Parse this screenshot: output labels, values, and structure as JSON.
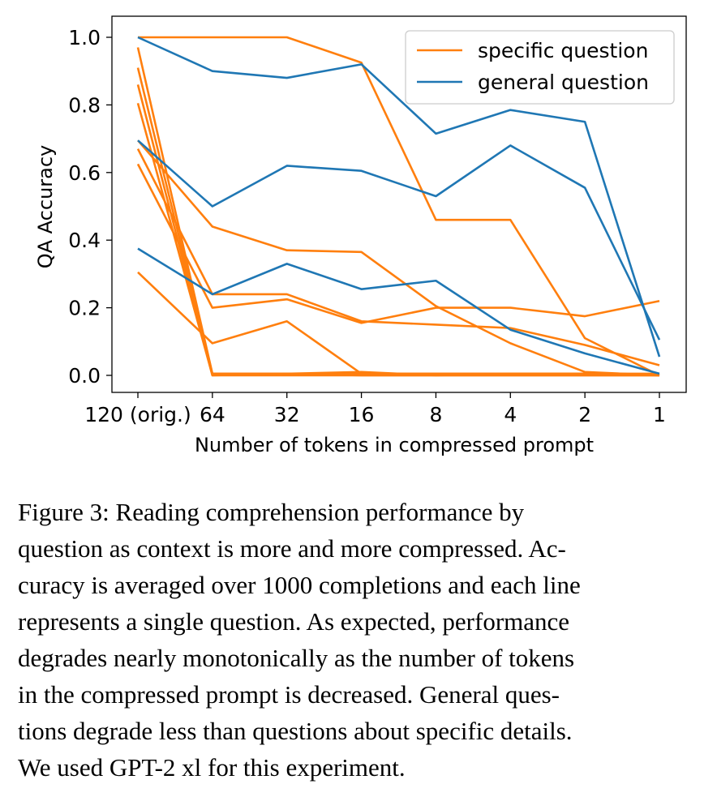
{
  "chart_data": {
    "type": "line",
    "title": "",
    "xlabel": "Number of tokens in compressed prompt",
    "ylabel": "QA Accuracy",
    "categories": [
      "120 (orig.)",
      "64",
      "32",
      "16",
      "8",
      "4",
      "2",
      "1"
    ],
    "ylim": [
      0,
      1
    ],
    "yticks": [
      "0.0",
      "0.2",
      "0.4",
      "0.6",
      "0.8",
      "1.0"
    ],
    "legend": {
      "placement": "top-right",
      "entries": [
        "specific question",
        "general question"
      ]
    },
    "colors": {
      "specific": "#ff7f0e",
      "general": "#1f77b4"
    },
    "series": [
      {
        "group": "specific",
        "values": [
          1.0,
          1.0,
          1.0,
          0.925,
          0.46,
          0.46,
          0.11,
          0.0
        ]
      },
      {
        "group": "specific",
        "values": [
          0.695,
          0.44,
          0.37,
          0.365,
          0.205,
          0.095,
          0.01,
          0.0
        ]
      },
      {
        "group": "specific",
        "values": [
          0.67,
          0.24,
          0.24,
          0.16,
          0.15,
          0.14,
          0.09,
          0.03
        ]
      },
      {
        "group": "specific",
        "values": [
          0.625,
          0.2,
          0.225,
          0.155,
          0.2,
          0.2,
          0.175,
          0.22
        ]
      },
      {
        "group": "specific",
        "values": [
          0.305,
          0.095,
          0.16,
          0.005,
          0.005,
          0.005,
          0.005,
          0.0
        ]
      },
      {
        "group": "specific",
        "values": [
          0.97,
          0.005,
          0.005,
          0.005,
          0.005,
          0.005,
          0.005,
          0.005
        ]
      },
      {
        "group": "specific",
        "values": [
          0.91,
          0.005,
          0.005,
          0.01,
          0.0,
          0.005,
          0.005,
          0.0
        ]
      },
      {
        "group": "specific",
        "values": [
          0.86,
          0.0,
          0.0,
          0.0,
          0.0,
          0.0,
          0.0,
          0.0
        ]
      },
      {
        "group": "specific",
        "values": [
          0.805,
          0.0,
          0.005,
          0.0,
          0.0,
          0.0,
          0.0,
          0.0
        ]
      },
      {
        "group": "general",
        "values": [
          1.0,
          0.9,
          0.88,
          0.92,
          0.715,
          0.785,
          0.75,
          0.055
        ]
      },
      {
        "group": "general",
        "values": [
          0.695,
          0.5,
          0.62,
          0.605,
          0.53,
          0.68,
          0.555,
          0.105
        ]
      },
      {
        "group": "general",
        "values": [
          0.375,
          0.24,
          0.33,
          0.255,
          0.28,
          0.135,
          0.065,
          0.005
        ]
      }
    ]
  },
  "caption": {
    "lines": [
      "Figure 3:  Reading comprehension performance by",
      "question as context is more and more compressed. Ac-",
      "curacy is averaged over 1000 completions and each line",
      "represents a single question. As expected, performance",
      "degrades nearly monotonically as the number of tokens",
      "in the compressed prompt is decreased.  General ques-",
      "tions degrade less than questions about specific details.",
      "We used GPT-2 xl for this experiment."
    ]
  }
}
